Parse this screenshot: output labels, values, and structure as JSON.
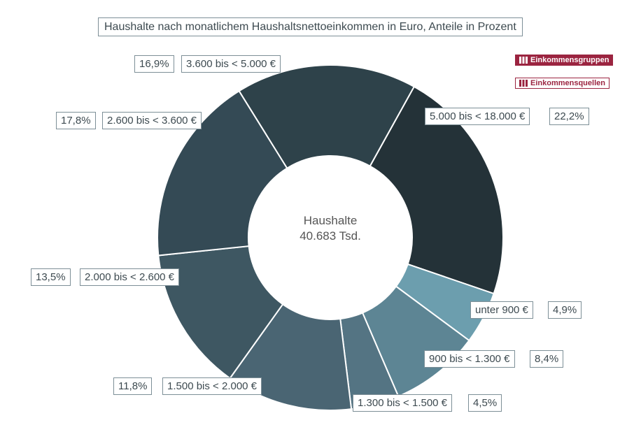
{
  "chart_data": {
    "type": "pie",
    "title": "Haushalte nach monatlichem Haushaltsnettoeinkommen in Euro, Anteile in Prozent",
    "center_label": "Haushalte",
    "center_value": "40.683 Tsd.",
    "slices": [
      {
        "label": "5.000 bis < 18.000 €",
        "value": 22.2,
        "pct": "22,2%",
        "color": "#243238"
      },
      {
        "label": "unter 900 €",
        "value": 4.9,
        "pct": "4,9%",
        "color": "#6c9eae"
      },
      {
        "label": "900 bis < 1.300 €",
        "value": 8.4,
        "pct": "8,4%",
        "color": "#5d8594"
      },
      {
        "label": "1.300 bis < 1.500 €",
        "value": 4.5,
        "pct": "4,5%",
        "color": "#547483"
      },
      {
        "label": "1.500 bis < 2.000 €",
        "value": 11.8,
        "pct": "11,8%",
        "color": "#4a6573"
      },
      {
        "label": "2.000 bis < 2.600 €",
        "value": 13.5,
        "pct": "13,5%",
        "color": "#3e5762"
      },
      {
        "label": "2.600 bis < 3.600 €",
        "value": 17.8,
        "pct": "17,8%",
        "color": "#344a55"
      },
      {
        "label": "3.600 bis < 5.000 €",
        "value": 16.9,
        "pct": "16,9%",
        "color": "#2e424a"
      }
    ]
  },
  "buttons": {
    "groups": "Einkommensgruppen",
    "sources": "Einkommensquellen"
  },
  "colors": {
    "accent": "#9b2440"
  }
}
